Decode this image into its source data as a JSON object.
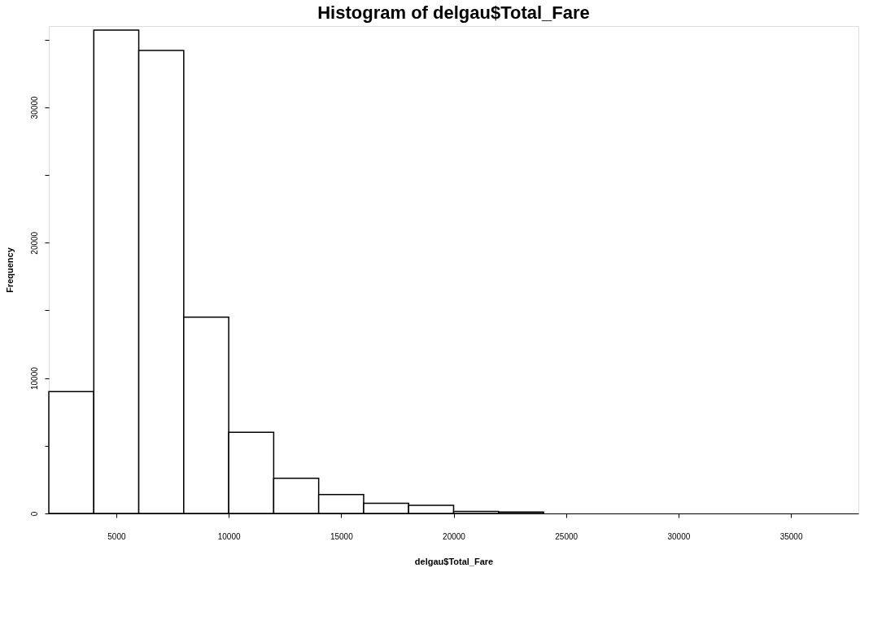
{
  "chart_data": {
    "type": "histogram",
    "title": "Histogram of delgau$Total_Fare",
    "xlabel": "delgau$Total_Fare",
    "ylabel": "Frequency",
    "bins": [
      2000,
      4000,
      6000,
      8000,
      10000,
      12000,
      14000,
      16000,
      18000,
      20000,
      22000,
      24000
    ],
    "values": [
      9000,
      35700,
      34200,
      14500,
      6000,
      2600,
      1400,
      750,
      600,
      150,
      100
    ],
    "color": "#ffffff",
    "xlim": [
      2000,
      38000
    ],
    "xticks": [
      5000,
      10000,
      15000,
      20000,
      25000,
      30000,
      35000
    ],
    "ylim": [
      0,
      36000
    ],
    "yticks": [
      0,
      {
        "value": 5000,
        "label": null
      },
      10000,
      {
        "value": 15000,
        "label": null
      },
      20000,
      {
        "value": 25000,
        "label": null
      },
      30000,
      {
        "value": 35000,
        "label": null
      }
    ],
    "grid": false
  }
}
